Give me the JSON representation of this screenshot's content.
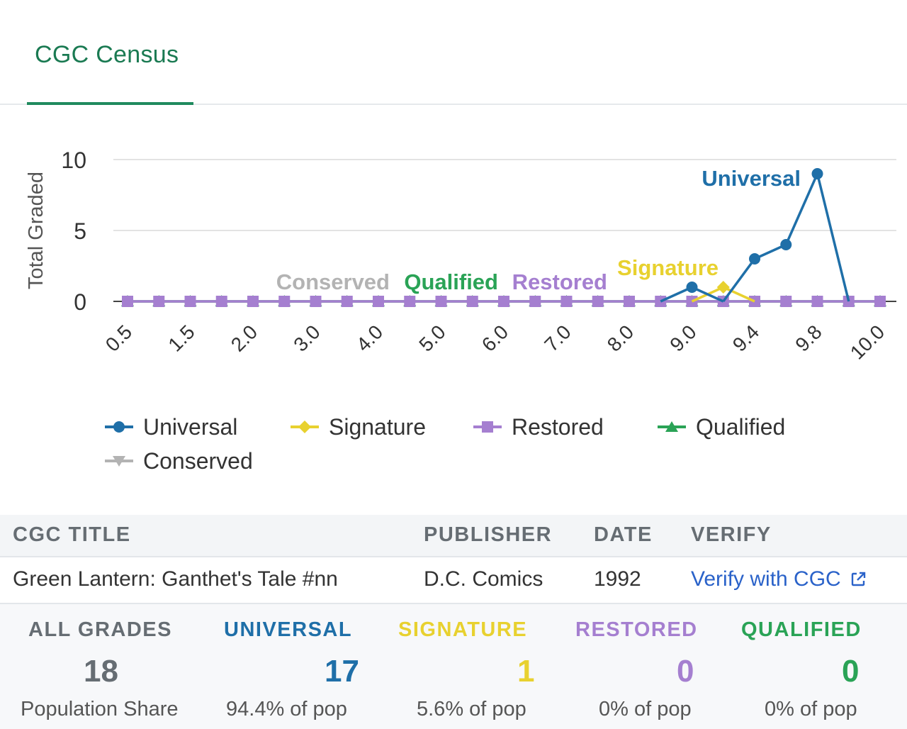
{
  "tab": {
    "label": "CGC Census"
  },
  "colors": {
    "universal": "#1f6fa8",
    "signature": "#e8d12f",
    "restored": "#a57fd0",
    "qualified": "#2aa356",
    "conserved": "#b3b3b3",
    "link": "#2a62c9",
    "accent": "#1f8a5e"
  },
  "chart_data": {
    "type": "line",
    "ylabel": "Total Graded",
    "xlabel": "",
    "ylim": [
      0,
      10
    ],
    "yticks": [
      0,
      5,
      10
    ],
    "grid": true,
    "legend_placement": "bottom",
    "x": [
      "0.5",
      "1.0",
      "1.5",
      "1.8",
      "2.0",
      "2.5",
      "3.0",
      "3.5",
      "4.0",
      "4.5",
      "5.0",
      "5.5",
      "6.0",
      "6.5",
      "7.0",
      "7.5",
      "8.0",
      "8.5",
      "9.0",
      "9.2",
      "9.4",
      "9.6",
      "9.8",
      "9.9",
      "10.0"
    ],
    "x_tick_labels_shown": [
      "0.5",
      "1.5",
      "2.0",
      "3.0",
      "4.0",
      "5.0",
      "6.0",
      "7.0",
      "8.0",
      "9.0",
      "9.4",
      "9.8",
      "10.0"
    ],
    "series": [
      {
        "name": "Universal",
        "color": "#1f6fa8",
        "marker": "circle",
        "values": [
          0,
          0,
          0,
          0,
          0,
          0,
          0,
          0,
          0,
          0,
          0,
          0,
          0,
          0,
          0,
          0,
          0,
          0,
          1,
          0,
          3,
          4,
          9,
          0,
          0
        ]
      },
      {
        "name": "Signature",
        "color": "#e8d12f",
        "marker": "diamond",
        "values": [
          0,
          0,
          0,
          0,
          0,
          0,
          0,
          0,
          0,
          0,
          0,
          0,
          0,
          0,
          0,
          0,
          0,
          0,
          0,
          1,
          0,
          0,
          0,
          0,
          0
        ]
      },
      {
        "name": "Restored",
        "color": "#a57fd0",
        "marker": "square",
        "values": [
          0,
          0,
          0,
          0,
          0,
          0,
          0,
          0,
          0,
          0,
          0,
          0,
          0,
          0,
          0,
          0,
          0,
          0,
          0,
          0,
          0,
          0,
          0,
          0,
          0
        ]
      },
      {
        "name": "Qualified",
        "color": "#2aa356",
        "marker": "triangle-up",
        "values": [
          0,
          0,
          0,
          0,
          0,
          0,
          0,
          0,
          0,
          0,
          0,
          0,
          0,
          0,
          0,
          0,
          0,
          0,
          0,
          0,
          0,
          0,
          0,
          0,
          0
        ]
      },
      {
        "name": "Conserved",
        "color": "#b3b3b3",
        "marker": "triangle-down",
        "values": [
          0,
          0,
          0,
          0,
          0,
          0,
          0,
          0,
          0,
          0,
          0,
          0,
          0,
          0,
          0,
          0,
          0,
          0,
          0,
          0,
          0,
          0,
          0,
          0,
          0
        ]
      }
    ],
    "annotations": [
      "Universal",
      "Signature",
      "Restored",
      "Qualified",
      "Conserved"
    ]
  },
  "table": {
    "headers": {
      "title": "CGC TITLE",
      "publisher": "PUBLISHER",
      "date": "DATE",
      "verify": "VERIFY"
    },
    "row": {
      "title": "Green Lantern: Ganthet's Tale #nn",
      "publisher": "D.C. Comics",
      "date": "1992",
      "verify": "Verify with CGC",
      "verify_icon": "external-link-icon"
    }
  },
  "stats": {
    "all": {
      "label": "ALL GRADES",
      "value": "18",
      "sub": "Population Share"
    },
    "universal": {
      "label": "UNIVERSAL",
      "value": "17",
      "sub": "94.4% of pop"
    },
    "signature": {
      "label": "SIGNATURE",
      "value": "1",
      "sub": "5.6% of pop"
    },
    "restored": {
      "label": "RESTORED",
      "value": "0",
      "sub": "0% of pop"
    },
    "qualified": {
      "label": "QUALIFIED",
      "value": "0",
      "sub": "0% of pop"
    }
  }
}
